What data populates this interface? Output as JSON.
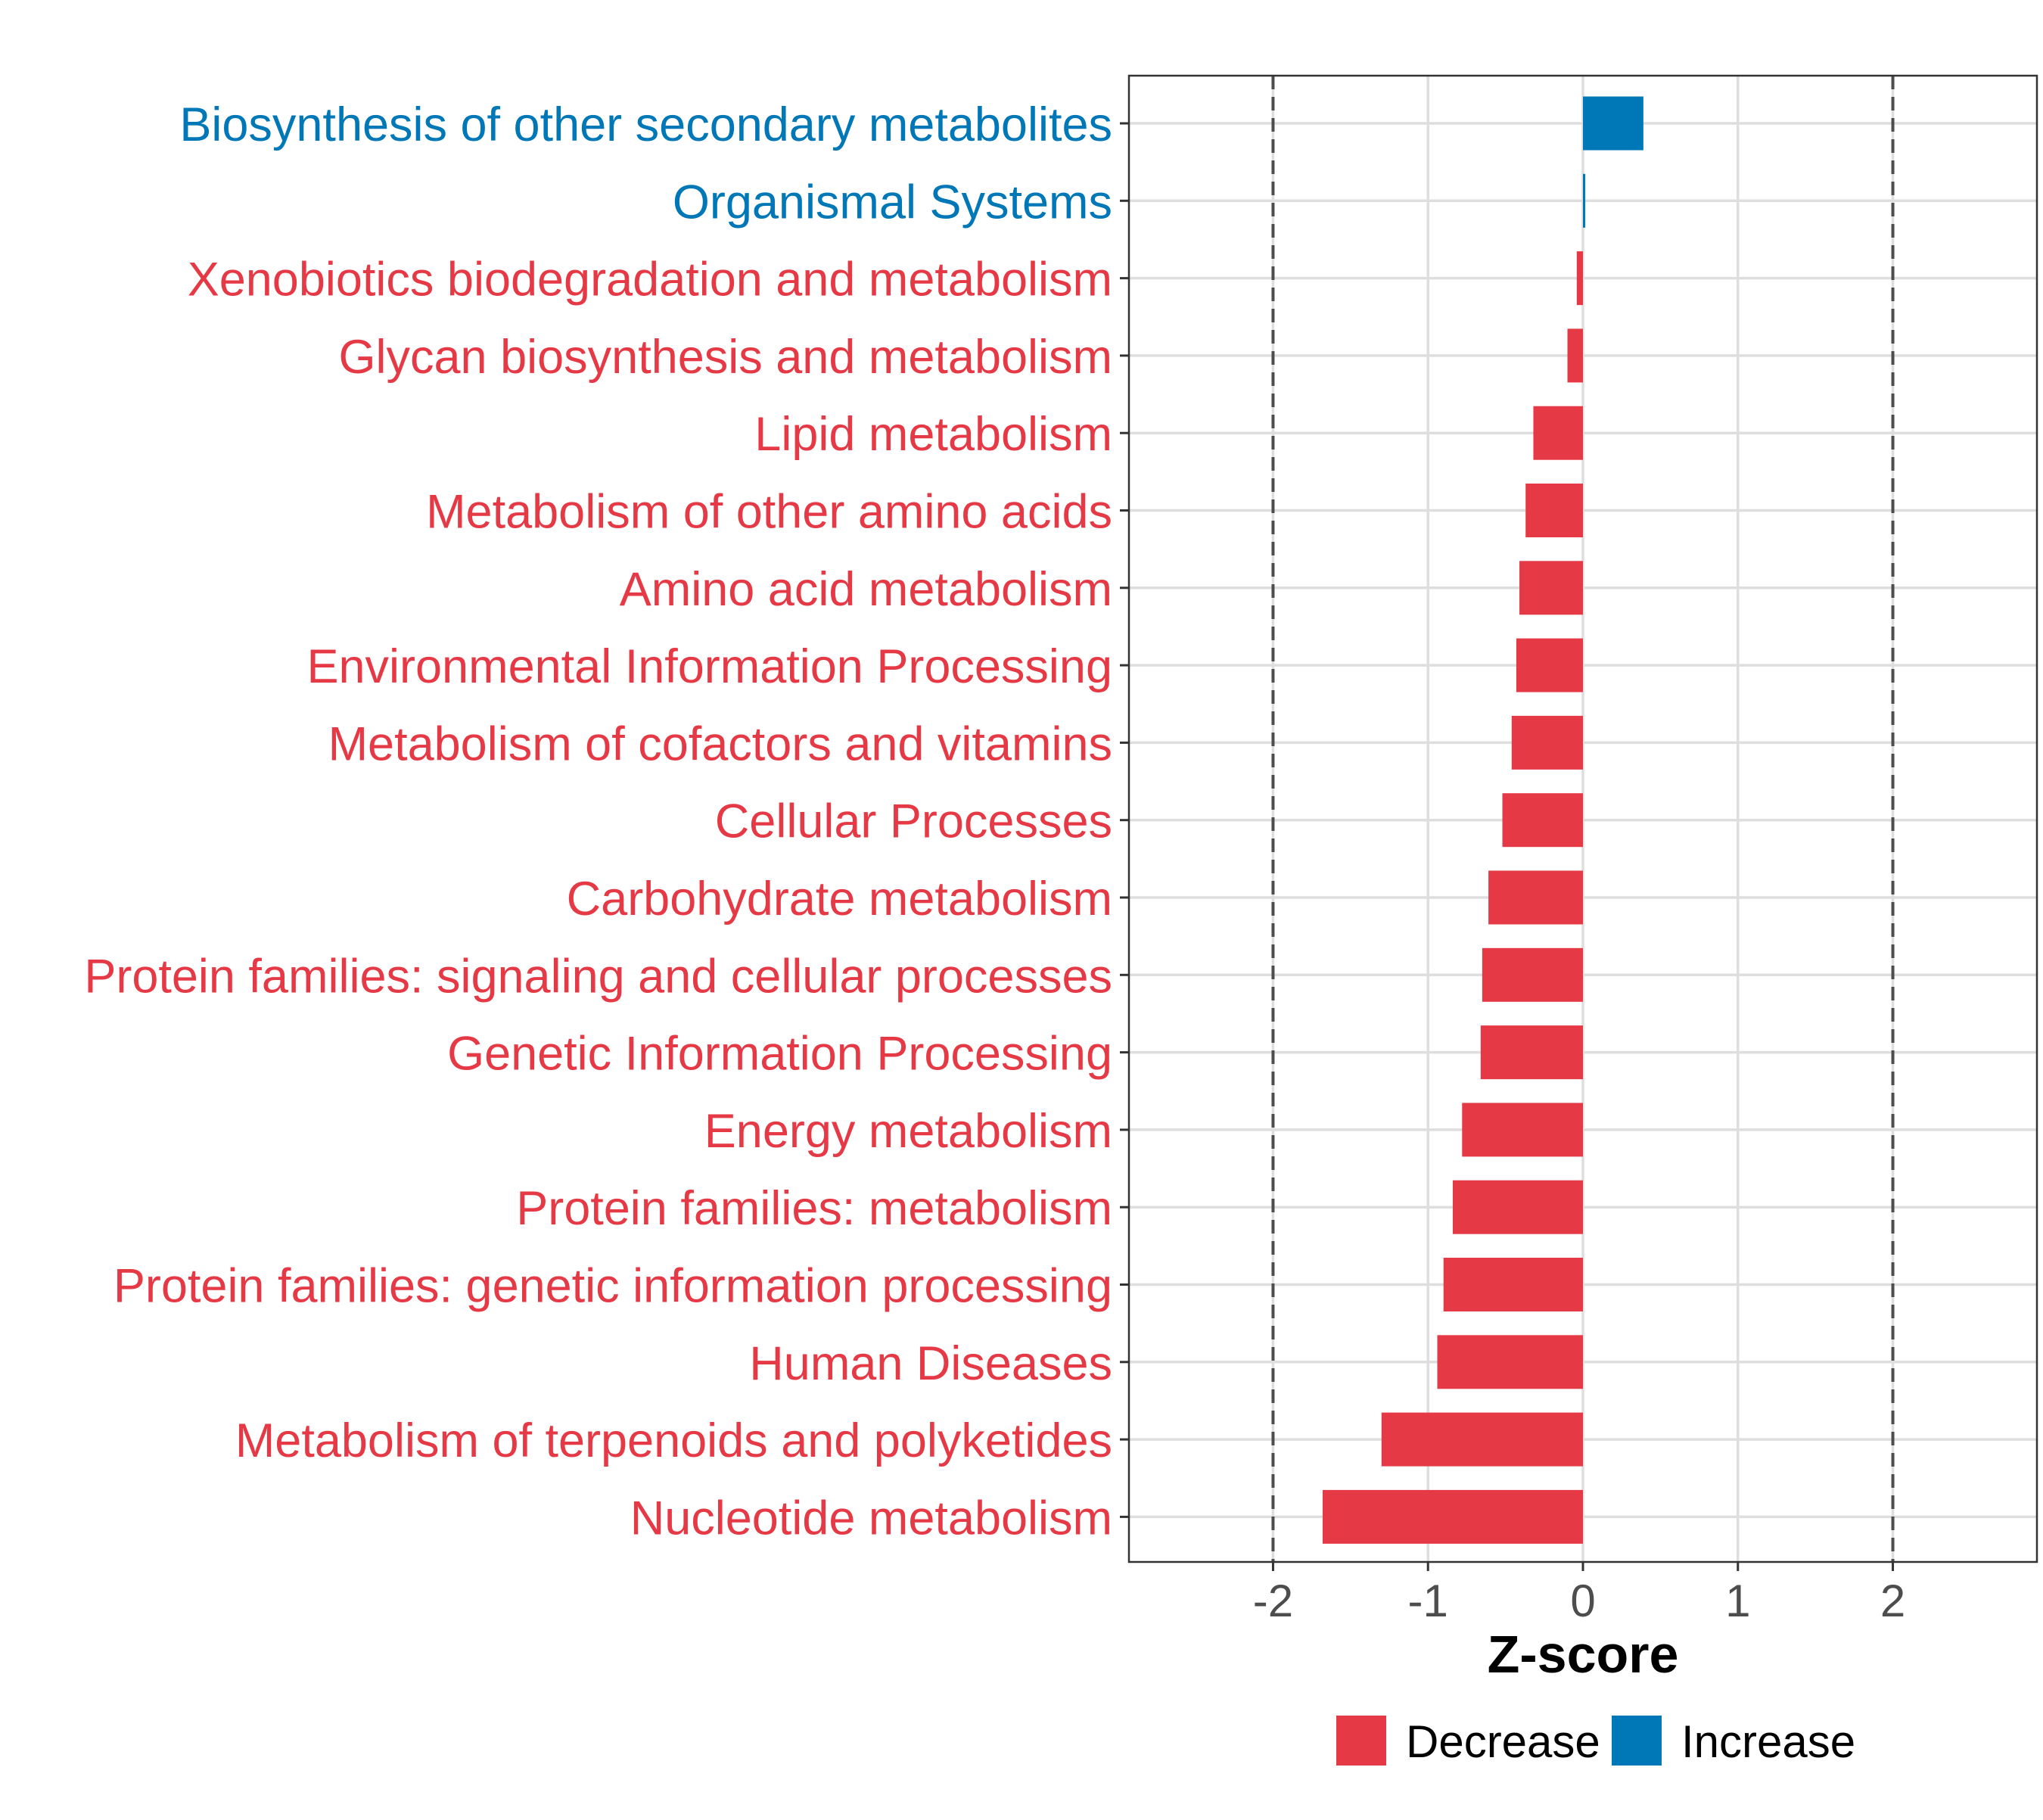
{
  "chart_data": {
    "type": "bar",
    "orientation": "horizontal",
    "categories": [
      "Biosynthesis of other secondary metabolites",
      "Organismal Systems",
      "Xenobiotics biodegradation and metabolism",
      "Glycan biosynthesis and metabolism",
      "Lipid metabolism",
      "Metabolism of other amino acids",
      "Amino acid metabolism",
      "Environmental Information Processing",
      "Metabolism of cofactors and vitamins",
      "Cellular Processes",
      "Carbohydrate metabolism",
      "Protein families: signaling and cellular processes",
      "Genetic Information Processing",
      "Energy metabolism",
      "Protein families: metabolism",
      "Protein families: genetic information processing",
      "Human Diseases",
      "Metabolism of terpenoids and polyketides",
      "Nucleotide metabolism"
    ],
    "values": [
      0.39,
      0.015,
      -0.04,
      -0.1,
      -0.32,
      -0.37,
      -0.41,
      -0.43,
      -0.46,
      -0.52,
      -0.61,
      -0.65,
      -0.66,
      -0.78,
      -0.84,
      -0.9,
      -0.94,
      -1.3,
      -1.68
    ],
    "groups": [
      "Increase",
      "Increase",
      "Decrease",
      "Decrease",
      "Decrease",
      "Decrease",
      "Decrease",
      "Decrease",
      "Decrease",
      "Decrease",
      "Decrease",
      "Decrease",
      "Decrease",
      "Decrease",
      "Decrease",
      "Decrease",
      "Decrease",
      "Decrease",
      "Decrease"
    ],
    "xlabel": "Z-score",
    "ylabel": "",
    "xlim": [
      -2.93,
      2.93
    ],
    "xticks": [
      -2,
      -1,
      0,
      1,
      2
    ],
    "xtick_labels": [
      "-2",
      "-1",
      "0",
      "1",
      "2"
    ],
    "reference_lines": [
      -2,
      2
    ],
    "grid": true,
    "legend": {
      "position": "bottom",
      "entries": [
        {
          "label": "Decrease",
          "color": "#e63946"
        },
        {
          "label": "Increase",
          "color": "#0077b6"
        }
      ]
    },
    "colors": {
      "Decrease": "#e63946",
      "Increase": "#0077b6"
    }
  }
}
